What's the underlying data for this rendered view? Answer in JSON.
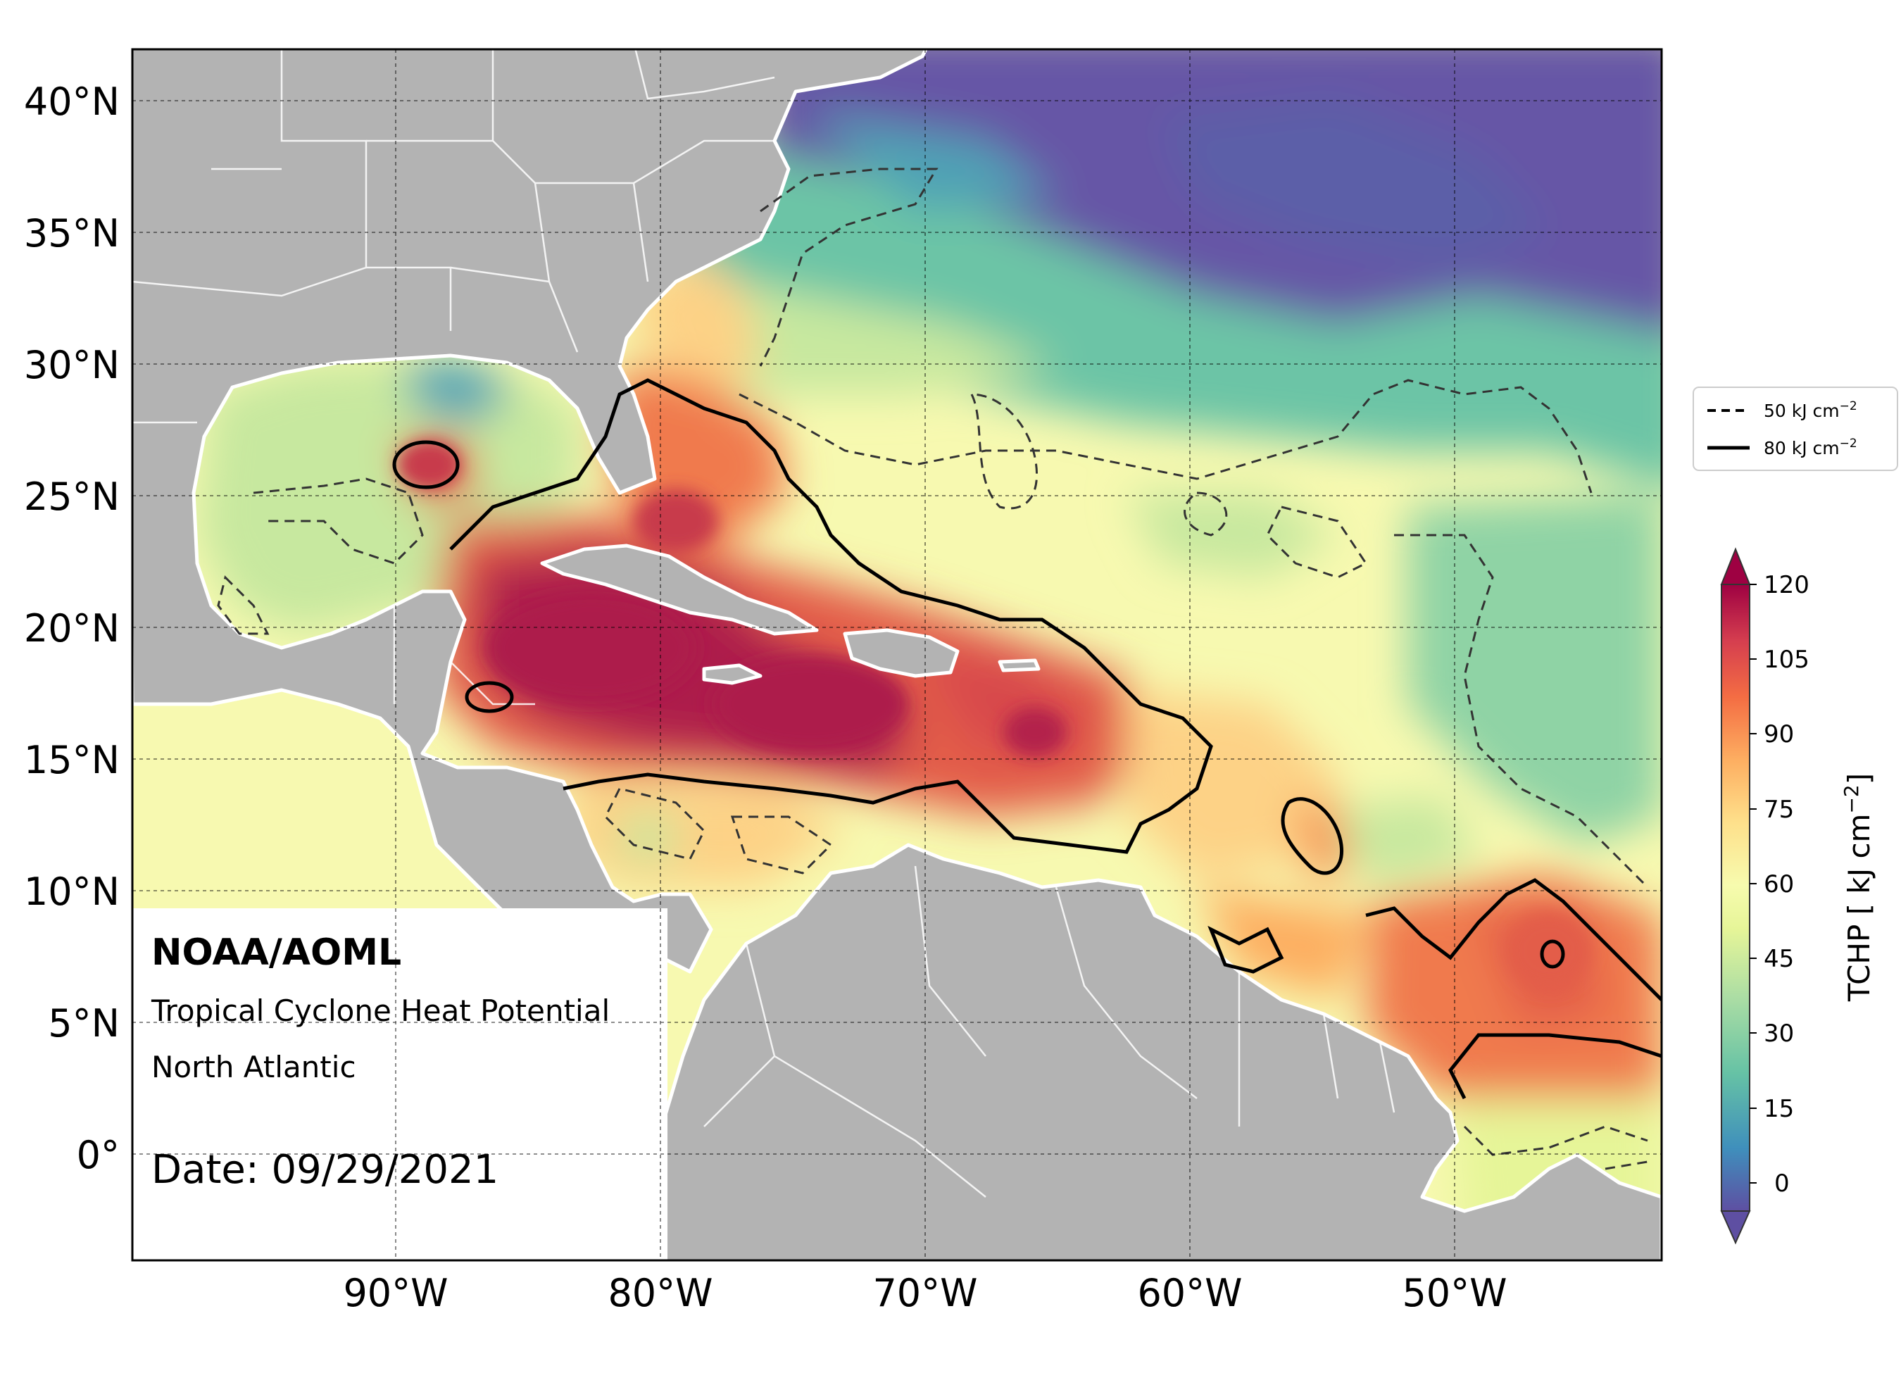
{
  "info": {
    "org": "NOAA/AOML",
    "product": "Tropical Cyclone Heat Potential",
    "region": "North Atlantic",
    "date_label": "Date: 09/29/2021"
  },
  "axes": {
    "lat_labels": [
      "40°N",
      "35°N",
      "30°N",
      "25°N",
      "20°N",
      "15°N",
      "10°N",
      "5°N",
      "0°"
    ],
    "lon_labels": [
      "90°W",
      "80°W",
      "70°W",
      "60°W",
      "50°W"
    ]
  },
  "legend": {
    "items": [
      {
        "style": "dashed",
        "label": "50 kJ cm",
        "sup": "−2"
      },
      {
        "style": "solid",
        "label": "80 kJ cm",
        "sup": "−2"
      }
    ]
  },
  "colorbar": {
    "label": "TCHP [ kJ cm",
    "label_sup": "−2",
    "label_end": "]",
    "ticks": [
      "120",
      "105",
      "90",
      "75",
      "60",
      "45",
      "30",
      "15",
      "0"
    ],
    "colors": [
      "#5e4fa2",
      "#4e6db1",
      "#3f8fbc",
      "#52a6b0",
      "#66c2a5",
      "#8ad0a4",
      "#abdda4",
      "#cceaa0",
      "#e6f598",
      "#f7fbae",
      "#fee08b",
      "#fdc978",
      "#fdae61",
      "#f88d52",
      "#f46d43",
      "#e55749",
      "#d53e4f",
      "#b3234c",
      "#9e0142"
    ],
    "extend": "both",
    "units": "kJ cm^-2"
  },
  "map": {
    "ocean_colors": {
      "cold": "#6656a6",
      "cool_teal": "#4fa1b5",
      "green": "#8fd3a5",
      "light_green": "#c7e89f",
      "pale_yellow": "#f7f9b0",
      "yellow_orange": "#fdd286",
      "orange": "#f79455",
      "red_orange": "#e35d4a",
      "crimson": "#ad1f4c"
    },
    "land_color": "#b3b3b3",
    "contour_levels": [
      {
        "value": 50,
        "style": "dashed"
      },
      {
        "value": 80,
        "style": "solid"
      }
    ]
  }
}
